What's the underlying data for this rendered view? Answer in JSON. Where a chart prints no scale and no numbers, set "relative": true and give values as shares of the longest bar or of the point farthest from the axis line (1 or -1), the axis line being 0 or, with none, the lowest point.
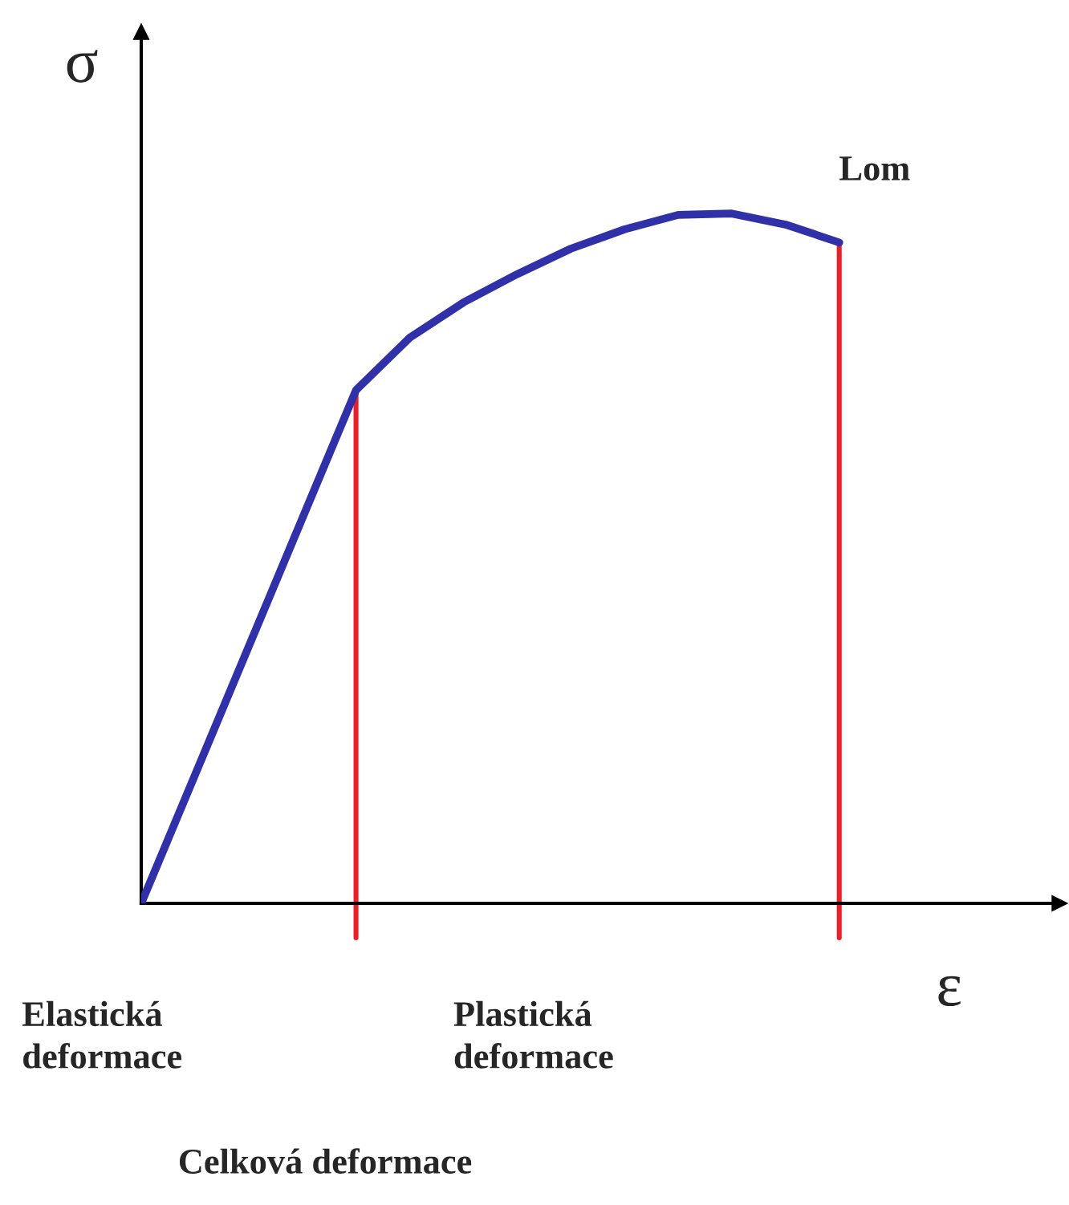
{
  "chart_data": {
    "type": "line",
    "relative": true,
    "xlabel": "ε",
    "ylabel": "σ",
    "categories": [
      null,
      null,
      null,
      null,
      null,
      null,
      null,
      null,
      null,
      null,
      null,
      null,
      null,
      null,
      null,
      null,
      null,
      null
    ],
    "series": [
      {
        "color": "#3030a8",
        "values": [
          0,
          0.186,
          0.372,
          0.558,
          0.744,
          0.82,
          0.871,
          0.912,
          0.949,
          0.977,
          0.998,
          1,
          0.984,
          0.958,
          null,
          null,
          null,
          null
        ]
      }
    ],
    "annotations": [
      "Lom",
      "Elastická\ndeformace",
      "Plastická\ndeformace",
      "Celková deformace"
    ]
  }
}
